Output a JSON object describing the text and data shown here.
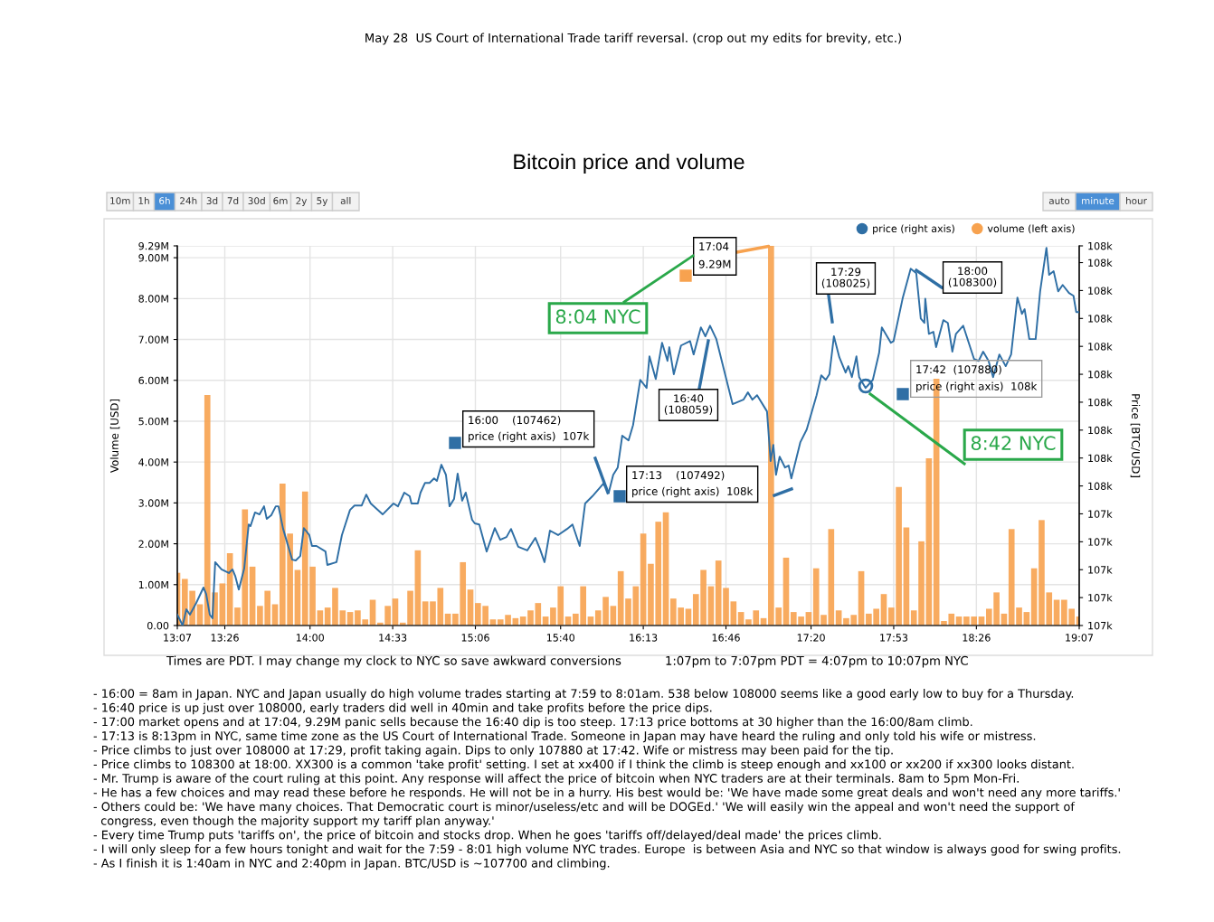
{
  "chart_data": {
    "type": "bar",
    "title": "Bitcoin price and volume",
    "subtitle": "May 28  US Court of International Trade tariff reversal. (crop out my edits for brevity, etc.)",
    "ylabel": "Volume [USD]",
    "y2label": "Price [BTC/USD]",
    "xlim": [
      13.117,
      19.117
    ],
    "xticks": [
      {
        "value": 13.117,
        "label": "13:07"
      },
      {
        "value": 13.433,
        "label": "13:26"
      },
      {
        "value": 14.0,
        "label": "14:00"
      },
      {
        "value": 14.55,
        "label": "14:33"
      },
      {
        "value": 15.1,
        "label": "15:06"
      },
      {
        "value": 15.667,
        "label": "15:40"
      },
      {
        "value": 16.217,
        "label": "16:13"
      },
      {
        "value": 16.767,
        "label": "16:46"
      },
      {
        "value": 17.333,
        "label": "17:20"
      },
      {
        "value": 17.883,
        "label": "17:53"
      },
      {
        "value": 18.433,
        "label": "18:26"
      },
      {
        "value": 19.117,
        "label": "19:07"
      }
    ],
    "ylim": [
      0,
      9290000
    ],
    "yticks": [
      {
        "value": 0,
        "label": "0.00"
      },
      {
        "value": 1000000,
        "label": "1.00M"
      },
      {
        "value": 2000000,
        "label": "2.00M"
      },
      {
        "value": 3000000,
        "label": "3.00M"
      },
      {
        "value": 4000000,
        "label": "4.00M"
      },
      {
        "value": 5000000,
        "label": "5.00M"
      },
      {
        "value": 6000000,
        "label": "6.00M"
      },
      {
        "value": 7000000,
        "label": "7.00M"
      },
      {
        "value": 8000000,
        "label": "8.00M"
      },
      {
        "value": 9000000,
        "label": "9.00M"
      },
      {
        "value": 9290000,
        "label": "9.29M"
      }
    ],
    "y2lim": [
      107000,
      108360
    ],
    "y2ticks": [
      {
        "value": 107000,
        "label": "107k"
      },
      {
        "value": 107100,
        "label": "107k"
      },
      {
        "value": 107200,
        "label": "107k"
      },
      {
        "value": 107300,
        "label": "107k"
      },
      {
        "value": 107400,
        "label": "107k"
      },
      {
        "value": 107500,
        "label": "108k"
      },
      {
        "value": 107600,
        "label": "108k"
      },
      {
        "value": 107700,
        "label": "108k"
      },
      {
        "value": 107800,
        "label": "108k"
      },
      {
        "value": 107900,
        "label": "108k"
      },
      {
        "value": 108000,
        "label": "108k"
      },
      {
        "value": 108100,
        "label": "108k"
      },
      {
        "value": 108200,
        "label": "108k"
      },
      {
        "value": 108300,
        "label": "108k"
      },
      {
        "value": 108360,
        "label": "108k"
      }
    ],
    "grid": true,
    "legend": "top right",
    "series": [
      {
        "name": "price (right axis)",
        "type": "line",
        "axis": "y2",
        "color": "#2f6fa5",
        "x": [
          13.117,
          13.153,
          13.177,
          13.201,
          13.243,
          13.291,
          13.309,
          13.333,
          13.351,
          13.369,
          13.411,
          13.46,
          13.484,
          13.502,
          13.526,
          13.562,
          13.592,
          13.604,
          13.634,
          13.664,
          13.694,
          13.712,
          13.742,
          13.772,
          13.79,
          13.821,
          13.881,
          13.905,
          13.935,
          13.959,
          13.995,
          14.013,
          14.043,
          14.103,
          14.115,
          14.176,
          14.212,
          14.266,
          14.296,
          14.344,
          14.374,
          14.404,
          14.483,
          14.555,
          14.585,
          14.627,
          14.663,
          14.675,
          14.717,
          14.735,
          14.765,
          14.795,
          14.825,
          14.844,
          14.874,
          14.904,
          14.928,
          14.958,
          14.982,
          15.012,
          15.036,
          15.078,
          15.096,
          15.126,
          15.175,
          15.229,
          15.265,
          15.307,
          15.337,
          15.385,
          15.445,
          15.499,
          15.529,
          15.56,
          15.596,
          15.65,
          15.71,
          15.746,
          15.794,
          15.83,
          15.878,
          15.951,
          15.987,
          16.017,
          16.047,
          16.077,
          16.119,
          16.149,
          16.197,
          16.239,
          16.258,
          16.3,
          16.342,
          16.378,
          16.39,
          16.42,
          16.468,
          16.528,
          16.552,
          16.6,
          16.63,
          16.661,
          16.703,
          16.763,
          16.811,
          16.883,
          16.913,
          16.943,
          16.974,
          17.04,
          17.064,
          17.082,
          17.1,
          17.124,
          17.16,
          17.184,
          17.202,
          17.262,
          17.304,
          17.37,
          17.401,
          17.431,
          17.455,
          17.485,
          17.521,
          17.563,
          17.581,
          17.605,
          17.635,
          17.653,
          17.696,
          17.744,
          17.786,
          17.804,
          17.864,
          17.882,
          17.942,
          17.996,
          18.033,
          18.063,
          18.087,
          18.093,
          18.117,
          18.147,
          18.165,
          18.213,
          18.243,
          18.273,
          18.297,
          18.345,
          18.417,
          18.448,
          18.478,
          18.514,
          18.544,
          18.586,
          18.628,
          18.664,
          18.706,
          18.736,
          18.754,
          18.785,
          18.827,
          18.857,
          18.899,
          18.917,
          18.947,
          18.977,
          19.007,
          19.049,
          19.079,
          19.097,
          19.116
        ],
        "values": [
          107039,
          107000,
          107058,
          107039,
          107081,
          107136,
          107113,
          107039,
          107026,
          107227,
          107201,
          107188,
          107201,
          107178,
          107129,
          107204,
          107362,
          107356,
          107405,
          107398,
          107427,
          107382,
          107395,
          107427,
          107427,
          107346,
          107236,
          107233,
          107249,
          107349,
          107324,
          107285,
          107285,
          107265,
          107217,
          107227,
          107324,
          107414,
          107430,
          107430,
          107469,
          107437,
          107398,
          107437,
          107427,
          107476,
          107463,
          107437,
          107437,
          107476,
          107511,
          107511,
          107527,
          107518,
          107576,
          107540,
          107427,
          107453,
          107544,
          107447,
          107476,
          107379,
          107366,
          107362,
          107265,
          107349,
          107307,
          107317,
          107346,
          107282,
          107269,
          107314,
          107275,
          107227,
          107340,
          107324,
          107346,
          107362,
          107285,
          107437,
          107463,
          107508,
          107476,
          107540,
          107566,
          107680,
          107663,
          107718,
          107880,
          107851,
          107964,
          107883,
          108013,
          107948,
          107997,
          107900,
          108003,
          108019,
          107971,
          108068,
          108036,
          108074,
          108026,
          107896,
          107793,
          107809,
          107835,
          107809,
          107825,
          107767,
          107589,
          107647,
          107540,
          107605,
          107566,
          107573,
          107527,
          107657,
          107702,
          107825,
          107896,
          107880,
          107900,
          108036,
          107961,
          107906,
          107929,
          107890,
          107964,
          107890,
          107851,
          107880,
          107977,
          108068,
          108013,
          108019,
          108171,
          108278,
          108262,
          108100,
          108084,
          108171,
          108045,
          108052,
          107997,
          108094,
          108084,
          107981,
          108045,
          108074,
          107955,
          107948,
          107981,
          107948,
          107890,
          107971,
          107929,
          107971,
          108175,
          108116,
          108133,
          108026,
          108026,
          108197,
          108353,
          108256,
          108269,
          108197,
          108220,
          108191,
          108181,
          108123,
          108123
        ]
      },
      {
        "name": "volume (left axis)",
        "type": "bar",
        "color": "#f7a24f",
        "x": [
          13.117,
          13.167,
          13.217,
          13.267,
          13.317,
          13.367,
          13.417,
          13.467,
          13.517,
          13.567,
          13.617,
          13.667,
          13.717,
          13.767,
          13.817,
          13.867,
          13.917,
          13.967,
          14.017,
          14.067,
          14.117,
          14.167,
          14.217,
          14.267,
          14.317,
          14.367,
          14.417,
          14.467,
          14.517,
          14.567,
          14.617,
          14.667,
          14.717,
          14.767,
          14.817,
          14.867,
          14.917,
          14.967,
          15.017,
          15.067,
          15.117,
          15.167,
          15.217,
          15.267,
          15.317,
          15.367,
          15.417,
          15.467,
          15.517,
          15.567,
          15.617,
          15.667,
          15.717,
          15.767,
          15.817,
          15.867,
          15.917,
          15.967,
          16.017,
          16.067,
          16.117,
          16.167,
          16.217,
          16.267,
          16.317,
          16.367,
          16.417,
          16.467,
          16.517,
          16.567,
          16.617,
          16.667,
          16.717,
          16.767,
          16.817,
          16.867,
          16.917,
          16.967,
          17.017,
          17.067,
          17.117,
          17.167,
          17.217,
          17.267,
          17.317,
          17.367,
          17.417,
          17.467,
          17.517,
          17.567,
          17.617,
          17.667,
          17.717,
          17.767,
          17.817,
          17.867,
          17.917,
          17.967,
          18.017,
          18.067,
          18.117,
          18.167,
          18.217,
          18.267,
          18.317,
          18.367,
          18.417,
          18.467,
          18.517,
          18.567,
          18.617,
          18.667,
          18.717,
          18.767,
          18.817,
          18.867,
          18.917,
          18.967,
          19.017,
          19.067,
          19.117
        ],
        "values": [
          1290000,
          1140000,
          850000,
          520000,
          5640000,
          810000,
          1030000,
          1770000,
          440000,
          2840000,
          1440000,
          480000,
          850000,
          520000,
          3470000,
          2250000,
          1360000,
          3280000,
          1440000,
          370000,
          440000,
          920000,
          370000,
          330000,
          370000,
          150000,
          630000,
          70000,
          480000,
          660000,
          70000,
          850000,
          1840000,
          590000,
          590000,
          920000,
          290000,
          290000,
          1550000,
          880000,
          550000,
          480000,
          150000,
          150000,
          260000,
          180000,
          220000,
          370000,
          550000,
          220000,
          440000,
          960000,
          220000,
          290000,
          960000,
          220000,
          370000,
          700000,
          480000,
          1330000,
          660000,
          960000,
          2250000,
          1510000,
          2540000,
          2770000,
          660000,
          440000,
          410000,
          770000,
          1360000,
          960000,
          1590000,
          920000,
          590000,
          330000,
          150000,
          370000,
          180000,
          9290000,
          440000,
          1660000,
          330000,
          220000,
          330000,
          1400000,
          260000,
          2360000,
          370000,
          180000,
          260000,
          1330000,
          290000,
          410000,
          770000,
          440000,
          3390000,
          2400000,
          370000,
          2060000,
          4090000,
          6040000,
          110000,
          290000,
          220000,
          220000,
          220000,
          220000,
          410000,
          810000,
          290000,
          2360000,
          440000,
          330000,
          1400000,
          2580000,
          810000,
          630000,
          630000,
          410000,
          220000
        ]
      }
    ],
    "annotations": [
      "10m",
      "1h",
      "6h",
      "24h",
      "3d",
      "7d",
      "30d",
      "6m",
      "2y",
      "5y",
      "all",
      "auto",
      "minute",
      "hour",
      {
        "text": "17:04\n9.29M",
        "x": 17.067,
        "y": 9290000
      },
      "8:04 NYC",
      "16:00    (107462)\nprice (right axis)  107k",
      "16:40\n(108059)",
      "17:29\n(108025)",
      "18:00\n(108300)",
      "17:13    (107492)\nprice (right axis)  108k",
      "17:42  (107880)\nprice (right axis)  108k",
      "8:42 NYC",
      "Times are PDT. I may change my clock to NYC so save awkward conversions",
      "1:07pm to 7:07pm PDT = 4:07pm to 10:07pm NYC",
      "- 16:00 = 8am in Japan. NYC and Japan usually do high volume trades starting at 7:59 to 8:01am. 538 below 108000 seems like a good early low to buy for a Thursday.\n- 16:40 price is up just over 108000, early traders did well in 40min and take profits before the price dips.\n- 17:00 market opens and at 17:04, 9.29M panic sells because the 16:40 dip is too steep. 17:13 price bottoms at 30 higher than the 16:00/8am climb.\n- 17:13 is 8:13pm in NYC, same time zone as the US Court of International Trade. Someone in Japan may have heard the ruling and only told his wife or mistress.\n- Price climbs to just over 108000 at 17:29, profit taking again. Dips to only 107880 at 17:42. Wife or mistress may been paid for the tip.\n- Price climbs to 108300 at 18:00. XX300 is a common 'take profit' setting. I set at xx400 if I think the climb is steep enough and xx100 or xx200 if xx300 looks distant.\n- Mr. Trump is aware of the court ruling at this point. Any response will affect the price of bitcoin when NYC traders are at their terminals. 8am to 5pm Mon-Fri.\n- He has a few choices and may read these before he responds. He will not be in a hurry. His best would be: 'We have made some great deals and won't need any more tariffs.'\n- Others could be: 'We have many choices. That Democratic court is minor/useless/etc and will be DOGEd.' 'We will easily win the appeal and won't need the support of\n  congress, even though the majority support my tariff plan anyway.'\n- Every time Trump puts 'tariffs on', the price of bitcoin and stocks drop. When he goes 'tariffs off/delayed/deal made' the prices climb.\n- I will only sleep for a few hours tonight and wait for the 7:59 - 8:01 high volume NYC trades. Europe  is between Asia and NYC so that window is always good for swing profits.\n- As I finish it is 1:40am in NYC and 2:40pm in Japan. BTC/USD is ~107700 and climbing."
    ]
  }
}
